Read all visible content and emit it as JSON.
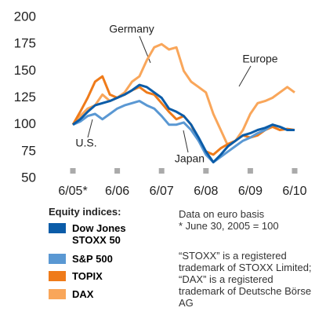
{
  "chart_data": {
    "type": "line",
    "categories": [
      "6/05*",
      null,
      null,
      null,
      null,
      null,
      "6/06",
      null,
      null,
      null,
      null,
      null,
      "6/07",
      null,
      null,
      null,
      null,
      null,
      "6/08",
      null,
      null,
      null,
      null,
      null,
      "6/09",
      null,
      null,
      null,
      null,
      null,
      "6/10"
    ],
    "series": [
      {
        "name": "DAX",
        "color": "#f9a65a",
        "values": [
          100,
          108,
          115,
          118,
          128,
          122,
          125,
          130,
          140,
          145,
          160,
          172,
          175,
          170,
          172,
          150,
          140,
          135,
          130,
          110,
          95,
          80,
          85,
          95,
          110,
          120,
          122,
          125,
          130,
          135,
          130
        ]
      },
      {
        "name": "TOPIX",
        "color": "#ef7b1a",
        "values": [
          100,
          112,
          125,
          140,
          145,
          128,
          125,
          128,
          132,
          135,
          130,
          128,
          120,
          112,
          105,
          108,
          100,
          85,
          75,
          72,
          78,
          82,
          85,
          90,
          88,
          90,
          95,
          98,
          95,
          96,
          95
        ]
      },
      {
        "name": "S&P 500",
        "color": "#5a98d3",
        "values": [
          100,
          103,
          108,
          110,
          105,
          110,
          115,
          118,
          120,
          122,
          118,
          115,
          108,
          100,
          100,
          102,
          95,
          85,
          72,
          65,
          70,
          75,
          80,
          85,
          88,
          92,
          95,
          100,
          98,
          95,
          95
        ]
      },
      {
        "name": "Dow Jones STOXX 50",
        "color": "#0b5ca8",
        "values": [
          100,
          105,
          112,
          118,
          120,
          122,
          125,
          128,
          132,
          137,
          135,
          130,
          125,
          115,
          112,
          108,
          100,
          88,
          75,
          65,
          72,
          80,
          85,
          90,
          92,
          95,
          97,
          100,
          98,
          95,
          95
        ]
      }
    ],
    "ylim": [
      50,
      200
    ],
    "yticks": [
      50,
      75,
      100,
      125,
      150,
      175,
      200
    ],
    "annotations": [
      "Germany",
      "Europe",
      "U.S.",
      "Japan"
    ],
    "legend_title": "Equity indices:",
    "legend_order": [
      3,
      2,
      1,
      0
    ],
    "notes": [
      "Data on euro basis",
      "* June 30, 2005 = 100"
    ],
    "footnote": "“STOXX” is a registered trademark of STOXX Limited; “DAX” is a registered trademark of Deutsche Börse AG"
  }
}
